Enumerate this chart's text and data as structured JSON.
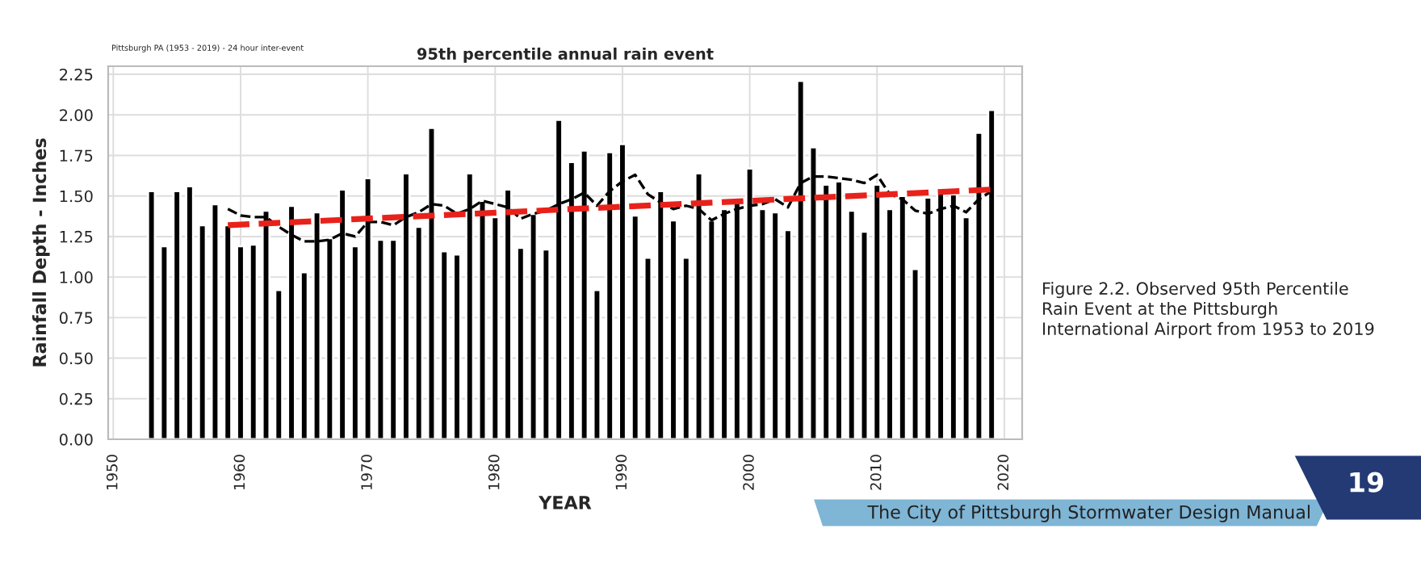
{
  "chart_data": {
    "type": "bar",
    "title": "95th percentile annual rain event",
    "subtitle": "Pittsburgh PA (1953 - 2019) - 24 hour inter-event",
    "xlabel": "YEAR",
    "ylabel": "Rainfall Depth - Inches",
    "series": [
      {
        "color": "#000000",
        "x": [
          1953,
          1954,
          1955,
          1956,
          1957,
          1958,
          1959,
          1960,
          1961,
          1962,
          1963,
          1964,
          1965,
          1966,
          1967,
          1968,
          1969,
          1970,
          1971,
          1972,
          1973,
          1974,
          1975,
          1976,
          1977,
          1978,
          1979,
          1980,
          1981,
          1982,
          1983,
          1984,
          1985,
          1986,
          1987,
          1988,
          1989,
          1990,
          1991,
          1992,
          1993,
          1994,
          1995,
          1996,
          1997,
          1998,
          1999,
          2000,
          2001,
          2002,
          2003,
          2004,
          2005,
          2006,
          2007,
          2008,
          2009,
          2010,
          2011,
          2012,
          2013,
          2014,
          2015,
          2016,
          2017,
          2018,
          2019
        ],
        "values": [
          1.53,
          1.19,
          1.53,
          1.56,
          1.32,
          1.45,
          1.32,
          1.19,
          1.2,
          1.41,
          0.92,
          1.44,
          1.03,
          1.4,
          1.24,
          1.54,
          1.19,
          1.61,
          1.23,
          1.23,
          1.64,
          1.31,
          1.92,
          1.16,
          1.14,
          1.64,
          1.47,
          1.37,
          1.54,
          1.18,
          1.39,
          1.17,
          1.97,
          1.71,
          1.78,
          0.92,
          1.77,
          1.82,
          1.38,
          1.12,
          1.53,
          1.35,
          1.12,
          1.64,
          1.35,
          1.42,
          1.46,
          1.67,
          1.42,
          1.4,
          1.29,
          2.21,
          1.8,
          1.57,
          1.59,
          1.41,
          1.28,
          1.57,
          1.42,
          1.5,
          1.05,
          1.49,
          1.52,
          1.51,
          1.37,
          1.89,
          2.03
        ]
      },
      {
        "type": "line",
        "color": "#000000",
        "line_style": "dashed",
        "x": [
          1959,
          1960,
          1961,
          1962,
          1963,
          1964,
          1965,
          1966,
          1967,
          1968,
          1969,
          1970,
          1971,
          1972,
          1973,
          1974,
          1975,
          1976,
          1977,
          1978,
          1979,
          1980,
          1981,
          1982,
          1983,
          1984,
          1985,
          1986,
          1987,
          1988,
          1989,
          1990,
          1991,
          1992,
          1993,
          1994,
          1995,
          1996,
          1997,
          1998,
          1999,
          2000,
          2001,
          2002,
          2003,
          2004,
          2005,
          2006,
          2007,
          2008,
          2009,
          2010,
          2011,
          2012,
          2013,
          2014,
          2015,
          2016,
          2017,
          2018,
          2019
        ],
        "values": [
          1.42,
          1.38,
          1.37,
          1.37,
          1.31,
          1.26,
          1.22,
          1.22,
          1.23,
          1.27,
          1.25,
          1.34,
          1.34,
          1.32,
          1.37,
          1.4,
          1.45,
          1.44,
          1.39,
          1.42,
          1.47,
          1.45,
          1.43,
          1.36,
          1.39,
          1.41,
          1.45,
          1.48,
          1.52,
          1.44,
          1.53,
          1.59,
          1.63,
          1.51,
          1.46,
          1.42,
          1.44,
          1.42,
          1.35,
          1.39,
          1.42,
          1.44,
          1.45,
          1.48,
          1.43,
          1.58,
          1.62,
          1.62,
          1.61,
          1.6,
          1.58,
          1.63,
          1.51,
          1.48,
          1.41,
          1.39,
          1.42,
          1.44,
          1.4,
          1.48,
          1.53
        ]
      },
      {
        "type": "line",
        "color": "#e8221b",
        "line_style": "dashed",
        "x": [
          1959,
          2019
        ],
        "values": [
          1.32,
          1.54
        ]
      }
    ],
    "xlim": [
      1949.6,
      2021.4
    ],
    "xticks": [
      1950,
      1960,
      1970,
      1980,
      1990,
      2000,
      2010,
      2020
    ],
    "ylim": [
      0,
      2.3
    ],
    "yticks": [
      {
        "value": 0,
        "label": "0.00"
      },
      {
        "value": 0.25,
        "label": "0.25"
      },
      {
        "value": 0.5,
        "label": "0.50"
      },
      {
        "value": 0.75,
        "label": "0.75"
      },
      {
        "value": 1,
        "label": "1.00"
      },
      {
        "value": 1.25,
        "label": "1.25"
      },
      {
        "value": 1.5,
        "label": "1.50"
      },
      {
        "value": 1.75,
        "label": "1.75"
      },
      {
        "value": 2,
        "label": "2.00"
      },
      {
        "value": 2.25,
        "label": "2.25"
      }
    ],
    "grid": true,
    "annotations": [
      "Figure 2.2. Observed 95th Percentile Rain Event at the Pittsburgh International Airport from 1953 to 2019",
      "The City of Pittsburgh Stormwater Design Manual",
      "19"
    ]
  }
}
